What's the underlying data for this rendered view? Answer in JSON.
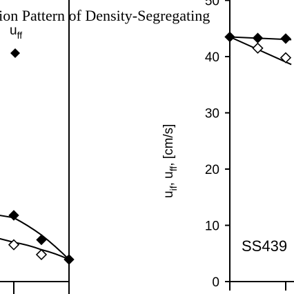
{
  "title": "tion Pattern of Density-Segregating",
  "chart_data": [
    {
      "type": "scatter",
      "panel": "left",
      "legend_label_main": "u",
      "legend_label_sub": "ff",
      "legend_placement": "top-right",
      "series": [
        {
          "name": "u_ff",
          "marker": "filled-diamond",
          "x": [
            0.5,
            0.75,
            1.0
          ],
          "y": [
            13,
            8,
            4
          ]
        },
        {
          "name": "u_if",
          "marker": "open-diamond",
          "x": [
            0.5,
            0.75
          ],
          "y": [
            7,
            5
          ]
        }
      ],
      "fits": [
        {
          "x": [
            0.0,
            0.5,
            0.75,
            1.0
          ],
          "y": [
            14,
            12.5,
            9,
            4
          ]
        },
        {
          "x": [
            0.0,
            0.5,
            0.75,
            1.0
          ],
          "y": [
            10,
            7.5,
            6,
            4
          ]
        }
      ],
      "xlim": [
        0,
        1
      ],
      "ylim": [
        0,
        50
      ]
    },
    {
      "type": "scatter",
      "panel": "right",
      "ylabel_main": "u",
      "ylabel_parts": [
        {
          "t": "if"
        },
        {
          "t": ", u"
        },
        {
          "t": "ff"
        },
        {
          "t": ",  [cm/s]"
        }
      ],
      "yticks": [
        "0",
        "10",
        "20",
        "30",
        "40",
        "50"
      ],
      "annotation": "SS439",
      "series": [
        {
          "name": "u_ff",
          "marker": "filled-diamond",
          "x": [
            0,
            1,
            2
          ],
          "y": [
            43.5,
            43.3,
            43.2
          ]
        },
        {
          "name": "u_if",
          "marker": "open-diamond",
          "x": [
            1,
            2
          ],
          "y": [
            41.5,
            39.8
          ]
        }
      ],
      "fits": [
        {
          "x": [
            0,
            2.2
          ],
          "y": [
            43.5,
            43.0
          ]
        },
        {
          "x": [
            0,
            2.2
          ],
          "y": [
            43.5,
            38.6
          ]
        }
      ],
      "xlim": [
        0,
        2.25
      ],
      "ylim": [
        0,
        50
      ]
    }
  ]
}
